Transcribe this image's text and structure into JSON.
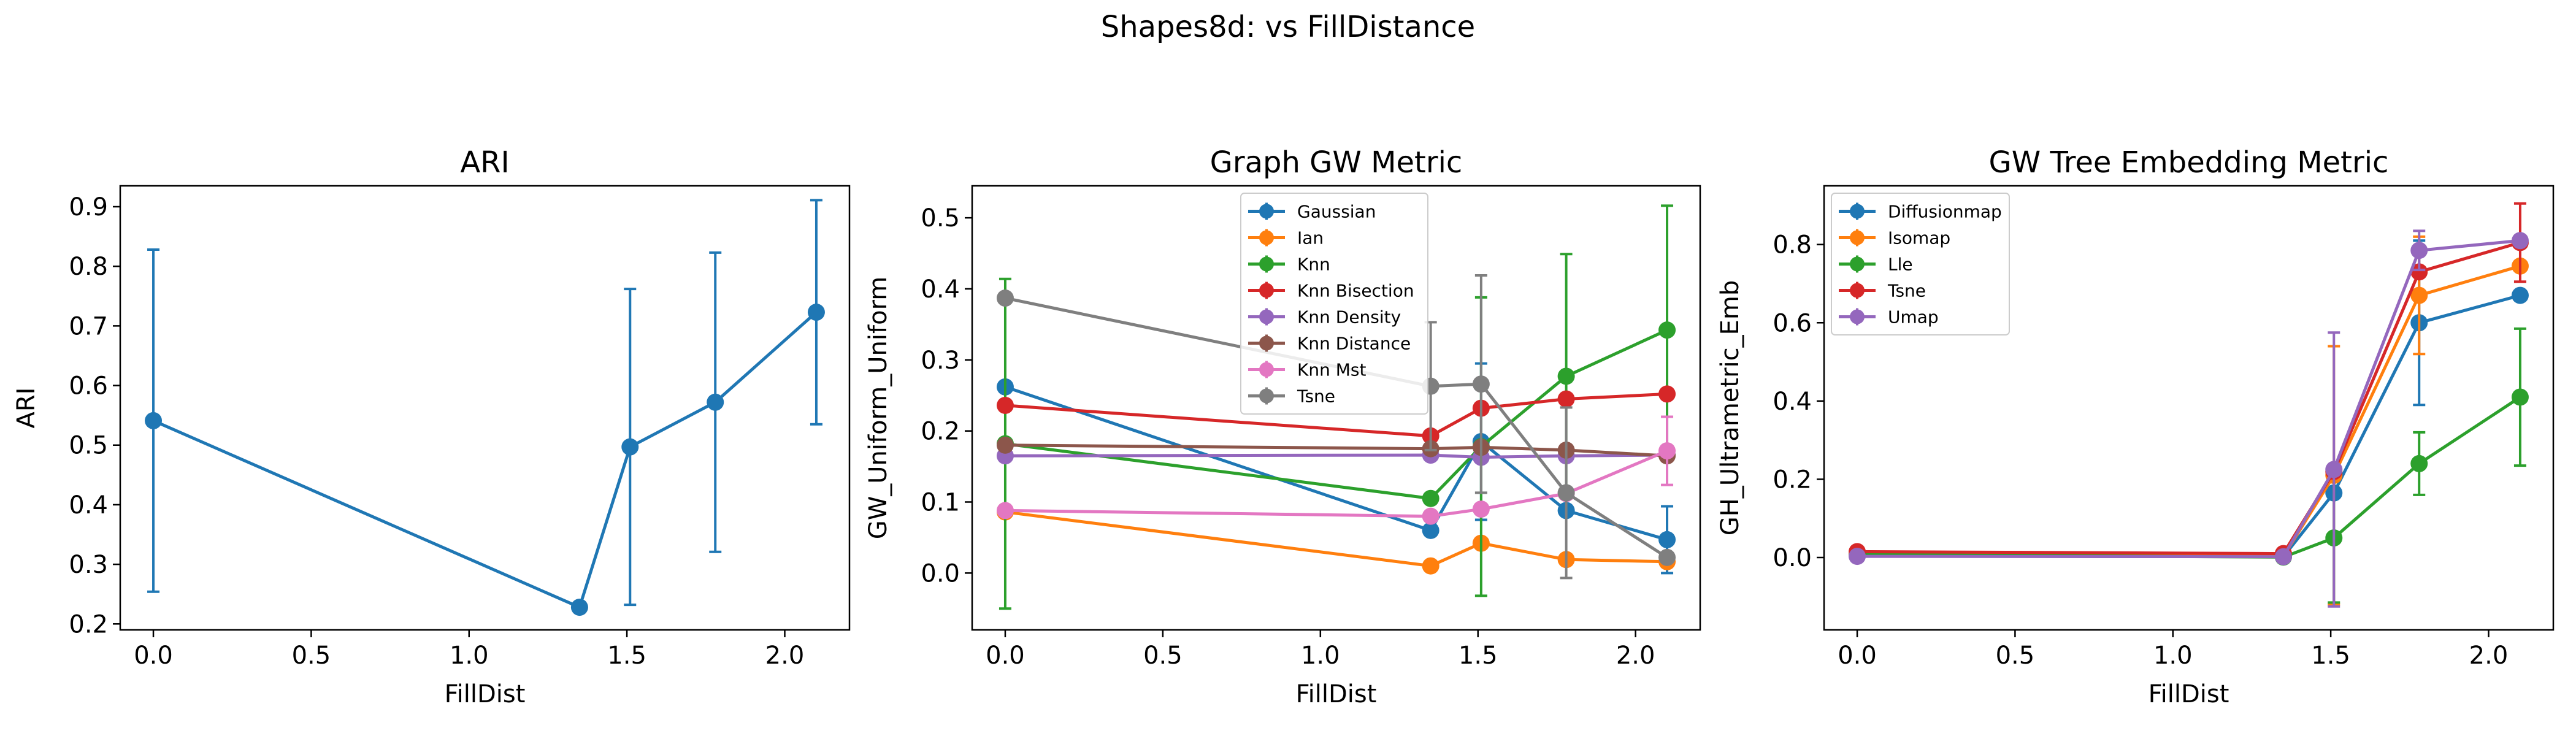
{
  "suptitle": "Shapes8d: vs FillDistance",
  "chart_data": [
    {
      "type": "line",
      "title": "ARI",
      "xlabel": "FillDist",
      "ylabel": "ARI",
      "xlim": [
        -0.105,
        2.205
      ],
      "ylim": [
        0.19,
        0.935
      ],
      "xticks": [
        "0.0",
        "0.5",
        "1.0",
        "1.5",
        "2.0"
      ],
      "yticks": [
        "0.2",
        "0.3",
        "0.4",
        "0.5",
        "0.6",
        "0.7",
        "0.8",
        "0.9"
      ],
      "legend": null,
      "series": [
        {
          "color": "#1f77b4",
          "x": [
            0.0,
            1.35,
            1.51,
            1.78,
            2.1
          ],
          "y": [
            0.541,
            0.228,
            0.497,
            0.572,
            0.723
          ],
          "yerr": [
            0.287,
            0.0,
            0.265,
            0.251,
            0.188
          ]
        }
      ]
    },
    {
      "type": "line",
      "title": "Graph GW Metric",
      "xlabel": "FillDist",
      "ylabel": "GW_Uniform_Uniform",
      "xlim": [
        -0.105,
        2.205
      ],
      "ylim": [
        -0.08,
        0.545
      ],
      "xticks": [
        "0.0",
        "0.5",
        "1.0",
        "1.5",
        "2.0"
      ],
      "yticks": [
        "0.0",
        "0.1",
        "0.2",
        "0.3",
        "0.4",
        "0.5"
      ],
      "legend": "upper-center",
      "series": [
        {
          "name": "Gaussian",
          "color": "#1f77b4",
          "x": [
            0.0,
            1.35,
            1.51,
            1.78,
            2.1
          ],
          "y": [
            0.262,
            0.06,
            0.185,
            0.088,
            0.047
          ],
          "yerr": [
            0.0,
            0.0,
            0.11,
            0.0,
            0.047
          ]
        },
        {
          "name": "Ian",
          "color": "#ff7f0e",
          "x": [
            0.0,
            1.35,
            1.51,
            1.78,
            2.1
          ],
          "y": [
            0.086,
            0.01,
            0.042,
            0.019,
            0.016
          ],
          "yerr": [
            0.0,
            0.0,
            0.0,
            0.0,
            0.0
          ]
        },
        {
          "name": "Knn",
          "color": "#2ca02c",
          "x": [
            0.0,
            1.35,
            1.51,
            1.78,
            2.1
          ],
          "y": [
            0.182,
            0.105,
            0.178,
            0.277,
            0.342
          ],
          "yerr": [
            0.232,
            0.0,
            0.21,
            0.172,
            0.175
          ]
        },
        {
          "name": "Knn Bisection",
          "color": "#d62728",
          "x": [
            0.0,
            1.35,
            1.51,
            1.78,
            2.1
          ],
          "y": [
            0.236,
            0.193,
            0.232,
            0.245,
            0.252
          ],
          "yerr": [
            0.0,
            0.0,
            0.0,
            0.0,
            0.0
          ]
        },
        {
          "name": "Knn Density",
          "color": "#9467bd",
          "x": [
            0.0,
            1.35,
            1.51,
            1.78,
            2.1
          ],
          "y": [
            0.165,
            0.166,
            0.163,
            0.165,
            0.166
          ],
          "yerr": [
            0.0,
            0.0,
            0.0,
            0.0,
            0.0
          ]
        },
        {
          "name": "Knn Distance",
          "color": "#8c564b",
          "x": [
            0.0,
            1.35,
            1.51,
            1.78,
            2.1
          ],
          "y": [
            0.18,
            0.175,
            0.177,
            0.173,
            0.165
          ],
          "yerr": [
            0.0,
            0.0,
            0.0,
            0.0,
            0.0
          ]
        },
        {
          "name": "Knn Mst",
          "color": "#e377c2",
          "x": [
            0.0,
            1.35,
            1.51,
            1.78,
            2.1
          ],
          "y": [
            0.088,
            0.08,
            0.09,
            0.112,
            0.172
          ],
          "yerr": [
            0.0,
            0.0,
            0.0,
            0.0,
            0.048
          ]
        },
        {
          "name": "Tsne",
          "color": "#7f7f7f",
          "x": [
            0.0,
            1.35,
            1.51,
            1.78,
            2.1
          ],
          "y": [
            0.387,
            0.263,
            0.266,
            0.113,
            0.022
          ],
          "yerr": [
            0.0,
            0.09,
            0.153,
            0.12,
            0.0
          ]
        }
      ]
    },
    {
      "type": "line",
      "title": "GW Tree Embedding Metric",
      "xlabel": "FillDist",
      "ylabel": "GH_Ultrametric_Emb",
      "xlim": [
        -0.105,
        2.205
      ],
      "ylim": [
        -0.185,
        0.95
      ],
      "xticks": [
        "0.0",
        "0.5",
        "1.0",
        "1.5",
        "2.0"
      ],
      "yticks": [
        "0.0",
        "0.2",
        "0.4",
        "0.6",
        "0.8"
      ],
      "legend": "upper-left",
      "series": [
        {
          "name": "Diffusionmap",
          "color": "#1f77b4",
          "x": [
            0.0,
            1.35,
            1.51,
            1.78,
            2.1
          ],
          "y": [
            0.005,
            0.002,
            0.165,
            0.6,
            0.67
          ],
          "yerr": [
            0.0,
            0.0,
            0.0,
            0.21,
            0.0
          ]
        },
        {
          "name": "Isomap",
          "color": "#ff7f0e",
          "x": [
            0.0,
            1.35,
            1.51,
            1.78,
            2.1
          ],
          "y": [
            0.008,
            0.003,
            0.21,
            0.67,
            0.745
          ],
          "yerr": [
            0.0,
            0.0,
            0.33,
            0.15,
            0.0
          ]
        },
        {
          "name": "Lle",
          "color": "#2ca02c",
          "x": [
            0.0,
            1.35,
            1.51,
            1.78,
            2.1
          ],
          "y": [
            0.008,
            0.001,
            0.05,
            0.24,
            0.41
          ],
          "yerr": [
            0.0,
            0.0,
            0.165,
            0.08,
            0.175
          ]
        },
        {
          "name": "Tsne",
          "color": "#d62728",
          "x": [
            0.0,
            1.35,
            1.51,
            1.78,
            2.1
          ],
          "y": [
            0.015,
            0.01,
            0.22,
            0.73,
            0.805
          ],
          "yerr": [
            0.0,
            0.0,
            0.0,
            0.0,
            0.1
          ]
        },
        {
          "name": "Umap",
          "color": "#9467bd",
          "x": [
            0.0,
            1.35,
            1.51,
            1.78,
            2.1
          ],
          "y": [
            0.003,
            0.002,
            0.225,
            0.785,
            0.81
          ],
          "yerr": [
            0.0,
            0.0,
            0.35,
            0.05,
            0.0
          ]
        }
      ]
    }
  ]
}
